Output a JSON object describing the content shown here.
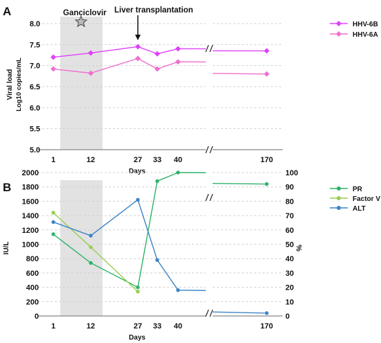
{
  "chart_data": [
    {
      "panel": "A",
      "type": "line",
      "ylabel": "Viral load",
      "ylabel2": "Log10 copies/mL",
      "xlabel": "Days",
      "ylim": [
        5.0,
        8.0
      ],
      "yticks": [
        "5.0",
        "5.5",
        "6.0",
        "6.5",
        "7.0",
        "7.5",
        "8.0"
      ],
      "xticks": [
        "1",
        "12",
        "27",
        "33",
        "40",
        "170"
      ],
      "grid": true,
      "legend": "top-right",
      "annotations": {
        "treatment": "Ganciclovir",
        "event": "Liver transplantation"
      },
      "series": [
        {
          "name": "HHV-6B",
          "color": "#e040fb",
          "x": [
            1,
            12,
            27,
            33,
            40,
            170
          ],
          "y": [
            7.2,
            7.3,
            7.45,
            7.28,
            7.4,
            7.35
          ]
        },
        {
          "name": "HHV-6A",
          "color": "#f06fd0",
          "x": [
            1,
            12,
            27,
            33,
            40,
            170
          ],
          "y": [
            6.92,
            6.82,
            7.17,
            6.92,
            7.09,
            6.8
          ]
        }
      ]
    },
    {
      "panel": "B",
      "type": "line",
      "ylabel": "IU/L",
      "ylabel_right": "%",
      "xlabel": "Days",
      "ylim": [
        0,
        2000
      ],
      "ylim_right": [
        0,
        100
      ],
      "yticks": [
        "0",
        "200",
        "400",
        "600",
        "800",
        "1000",
        "1200",
        "1400",
        "1600",
        "1800",
        "2000"
      ],
      "yticks_right": [
        "0",
        "10",
        "20",
        "30",
        "40",
        "50",
        "60",
        "70",
        "80",
        "90",
        "100"
      ],
      "xticks": [
        "1",
        "12",
        "27",
        "33",
        "40",
        "170"
      ],
      "grid": true,
      "legend": "top-right",
      "series": [
        {
          "name": "PR",
          "color": "#2db36a",
          "axis": "right",
          "x": [
            1,
            12,
            27,
            33,
            40,
            170
          ],
          "y": [
            57,
            37,
            20,
            94,
            100,
            92
          ]
        },
        {
          "name": "Factor V",
          "color": "#9acd50",
          "axis": "right",
          "x": [
            1,
            12,
            27
          ],
          "y": [
            72,
            48,
            17
          ]
        },
        {
          "name": "ALT",
          "color": "#3d85c6",
          "axis": "left",
          "x": [
            1,
            12,
            27,
            33,
            40,
            170
          ],
          "y": [
            1310,
            1120,
            1620,
            780,
            360,
            40
          ]
        }
      ]
    }
  ]
}
